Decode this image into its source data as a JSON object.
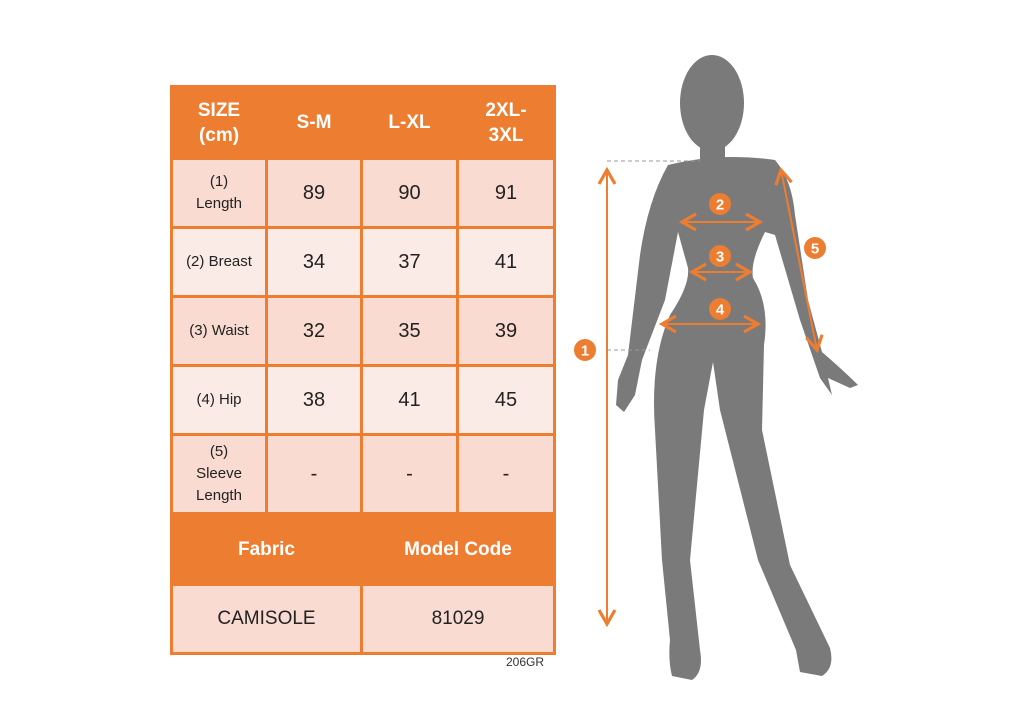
{
  "table": {
    "header": [
      "SIZE (cm)",
      "S-M",
      "L-XL",
      "2XL-3XL"
    ],
    "header_lines": {
      "size": [
        "SIZE",
        "(cm)"
      ],
      "xxl": [
        "2XL-",
        "3XL"
      ]
    },
    "rows": [
      {
        "label_lines": [
          "(1)",
          "Length"
        ],
        "values": [
          "89",
          "90",
          "91"
        ]
      },
      {
        "label": "(2) Breast",
        "values": [
          "34",
          "37",
          "41"
        ]
      },
      {
        "label": "(3) Waist",
        "values": [
          "32",
          "35",
          "39"
        ]
      },
      {
        "label": "(4) Hip",
        "values": [
          "38",
          "41",
          "45"
        ]
      },
      {
        "label_lines": [
          "(5)",
          "Sleeve",
          "Length"
        ],
        "values": [
          "-",
          "-",
          "-"
        ]
      }
    ],
    "footer_headers": [
      "Fabric",
      "Model Code"
    ],
    "footer_values": [
      "CAMISOLE",
      "81029"
    ]
  },
  "code_note": "206GR",
  "diagram": {
    "markers": [
      "1",
      "2",
      "3",
      "4",
      "5"
    ]
  },
  "colors": {
    "accent": "#ed7d31",
    "row_dark": "#f9dbd1",
    "row_light": "#fbebe6",
    "silhouette": "#7a7a7a"
  }
}
